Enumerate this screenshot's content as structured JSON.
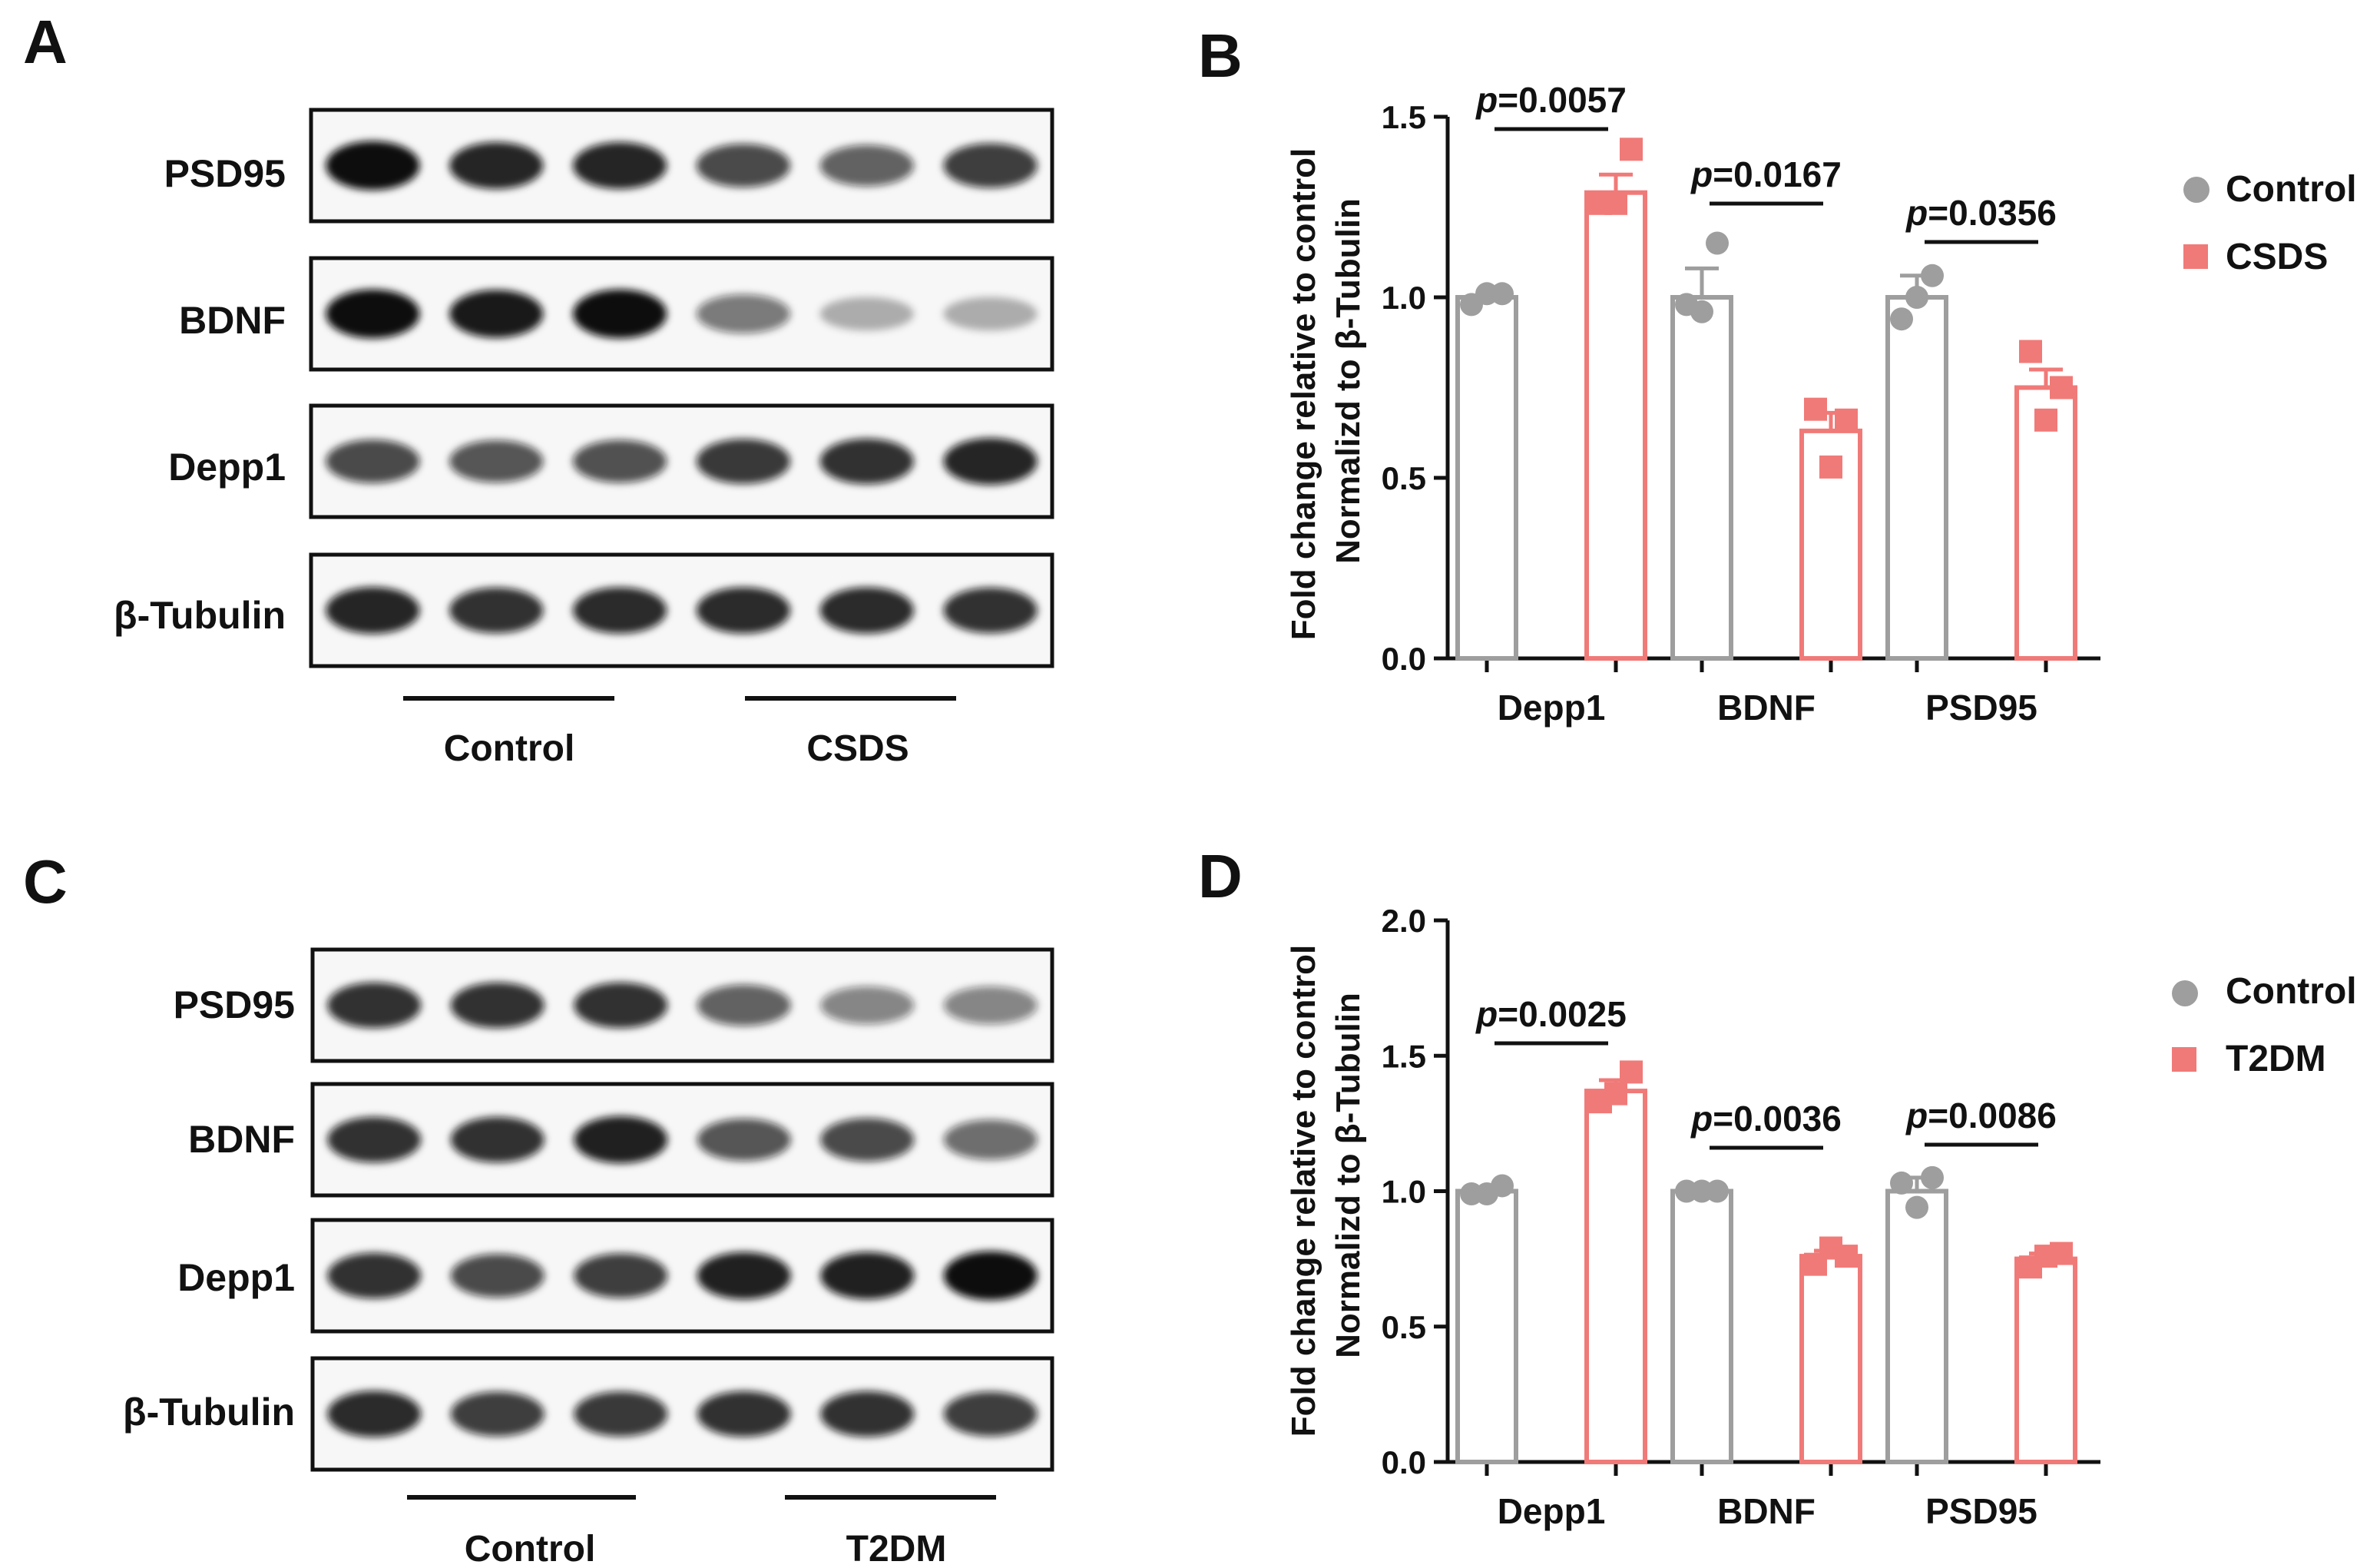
{
  "panels": {
    "A": {
      "letter": "A",
      "blot_labels": [
        "PSD95",
        "BDNF",
        "Depp1",
        "β-Tubulin"
      ],
      "group_labels": [
        "Control",
        "CSDS"
      ],
      "band_intensity": [
        [
          1.0,
          0.9,
          0.9,
          0.75,
          0.65,
          0.8
        ],
        [
          1.0,
          0.95,
          1.0,
          0.55,
          0.3,
          0.3
        ],
        [
          0.75,
          0.7,
          0.72,
          0.82,
          0.85,
          0.9
        ],
        [
          0.9,
          0.85,
          0.88,
          0.88,
          0.88,
          0.85
        ]
      ]
    },
    "C": {
      "letter": "C",
      "blot_labels": [
        "PSD95",
        "BDNF",
        "Depp1",
        "β-Tubulin"
      ],
      "group_labels": [
        "Control",
        "T2DM"
      ],
      "band_intensity": [
        [
          0.85,
          0.85,
          0.85,
          0.65,
          0.5,
          0.5
        ],
        [
          0.85,
          0.85,
          0.92,
          0.7,
          0.75,
          0.6
        ],
        [
          0.85,
          0.75,
          0.8,
          0.92,
          0.92,
          1.0
        ],
        [
          0.88,
          0.8,
          0.82,
          0.85,
          0.85,
          0.8
        ]
      ]
    }
  },
  "colors": {
    "control": "#9e9e9e",
    "treatment": "#f07a78",
    "axis": "#111111",
    "band": "#111111"
  },
  "chart_data": [
    {
      "panel_letter": "B",
      "type": "bar",
      "categories": [
        "Depp1",
        "BDNF",
        "PSD95"
      ],
      "ylabel_line1": "Fold change relative to control",
      "ylabel_line2": "Normalizd to β-Tubulin",
      "ylim": [
        0,
        1.5
      ],
      "yticks": [
        "0.0",
        "0.5",
        "1.0",
        "1.5"
      ],
      "legend_position": "right",
      "series": [
        {
          "name": "Control",
          "marker": "circle",
          "color": "#9e9e9e",
          "means": [
            1.0,
            1.0,
            1.0
          ],
          "sem": [
            0.0,
            0.08,
            0.06
          ],
          "points": [
            [
              0.98,
              1.01,
              1.01
            ],
            [
              0.98,
              1.15,
              0.96
            ],
            [
              0.94,
              1.06,
              1.0
            ]
          ]
        },
        {
          "name": "CSDS",
          "marker": "square",
          "color": "#f07a78",
          "means": [
            1.29,
            0.63,
            0.75
          ],
          "sem": [
            0.05,
            0.05,
            0.05
          ],
          "points": [
            [
              1.26,
              1.41,
              1.26
            ],
            [
              0.69,
              0.66,
              0.53
            ],
            [
              0.85,
              0.75,
              0.66
            ]
          ]
        }
      ],
      "annotations": [
        {
          "prefix": "p",
          "value": "=0.0057"
        },
        {
          "prefix": "p",
          "value": "=0.0167"
        },
        {
          "prefix": "p",
          "value": "=0.0356"
        }
      ]
    },
    {
      "panel_letter": "D",
      "type": "bar",
      "categories": [
        "Depp1",
        "BDNF",
        "PSD95"
      ],
      "ylabel_line1": "Fold change relative to control",
      "ylabel_line2": "Normalizd to β-Tubulin",
      "ylim": [
        0,
        2.0
      ],
      "yticks": [
        "0.0",
        "0.5",
        "1.0",
        "1.5",
        "2.0"
      ],
      "legend_position": "right",
      "series": [
        {
          "name": "Control",
          "marker": "circle",
          "color": "#9e9e9e",
          "means": [
            1.0,
            1.0,
            1.0
          ],
          "sem": [
            0.0,
            0.01,
            0.05
          ],
          "points": [
            [
              0.99,
              1.02,
              0.99
            ],
            [
              1.0,
              1.0,
              1.0
            ],
            [
              1.03,
              1.05,
              0.94
            ]
          ]
        },
        {
          "name": "T2DM",
          "marker": "square",
          "color": "#f07a78",
          "means": [
            1.37,
            0.76,
            0.75
          ],
          "sem": [
            0.04,
            0.02,
            0.02
          ],
          "points": [
            [
              1.33,
              1.44,
              1.36
            ],
            [
              0.73,
              0.76,
              0.79
            ],
            [
              0.72,
              0.77,
              0.76
            ]
          ]
        }
      ],
      "annotations": [
        {
          "prefix": "p",
          "value": "=0.0025"
        },
        {
          "prefix": "p",
          "value": "=0.0036"
        },
        {
          "prefix": "p",
          "value": "=0.0086"
        }
      ]
    }
  ]
}
